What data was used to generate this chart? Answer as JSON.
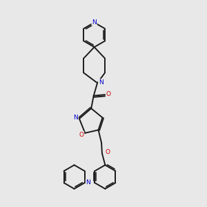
{
  "background_color": "#e8e8e8",
  "bond_color": "#1a1a1a",
  "N_color": "#0000cc",
  "O_color": "#cc0000",
  "bond_width": 1.4,
  "figsize": [
    3.0,
    3.0
  ],
  "dpi": 100,
  "xlim": [
    0,
    10
  ],
  "ylim": [
    0,
    10
  ]
}
